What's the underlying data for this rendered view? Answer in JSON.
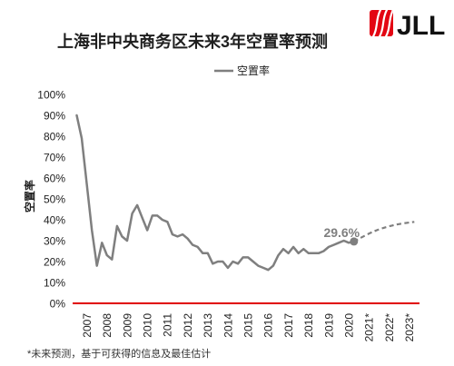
{
  "header": {
    "logo_text": "JLL",
    "logo_icon": "jll-logo-icon",
    "brand_color": "#e30613"
  },
  "chart_data": {
    "type": "line",
    "title": "上海非中央商务区未来3年空置率预测",
    "xlabel": "",
    "ylabel": "空置率",
    "x_tick_labels": [
      "2007",
      "2008",
      "2009",
      "2010",
      "2011",
      "2012",
      "2013",
      "2014",
      "2015",
      "2016",
      "2017",
      "2018",
      "2019",
      "2020",
      "2021*",
      "2022*",
      "2023*"
    ],
    "y_tick_labels": [
      "100%",
      "90%",
      "80%",
      "70%",
      "60%",
      "50%",
      "40%",
      "30%",
      "20%",
      "10%",
      "0%"
    ],
    "xlim": [
      2007,
      2024
    ],
    "ylim": [
      0,
      100
    ],
    "grid": false,
    "legend": {
      "position": "top-center"
    },
    "series": [
      {
        "name": "空置率",
        "color": "#7f7f7f",
        "line_style": "solid",
        "x": [
          2007,
          2007.25,
          2007.5,
          2007.75,
          2008,
          2008.25,
          2008.5,
          2008.75,
          2009,
          2009.25,
          2009.5,
          2009.75,
          2010,
          2010.25,
          2010.5,
          2010.75,
          2011,
          2011.25,
          2011.5,
          2011.75,
          2012,
          2012.25,
          2012.5,
          2012.75,
          2013,
          2013.25,
          2013.5,
          2013.75,
          2014,
          2014.25,
          2014.5,
          2014.75,
          2015,
          2015.25,
          2015.5,
          2015.75,
          2016,
          2016.25,
          2016.5,
          2016.75,
          2017,
          2017.25,
          2017.5,
          2017.75,
          2018,
          2018.25,
          2018.5,
          2018.75,
          2019,
          2019.25,
          2019.5,
          2019.75,
          2020,
          2020.25,
          2020.5,
          2020.75
        ],
        "values": [
          90,
          79,
          57,
          35,
          18,
          29,
          23,
          21,
          37,
          32,
          30,
          43,
          47,
          41,
          35,
          42,
          42,
          40,
          39,
          33,
          32,
          33,
          31,
          28,
          27,
          24,
          24,
          19,
          20,
          20,
          17,
          20,
          19,
          22,
          22,
          20,
          18,
          17,
          16,
          18,
          23,
          26,
          24,
          27,
          24,
          26,
          24,
          24,
          24,
          25,
          27,
          28,
          29,
          30,
          29,
          29.6
        ]
      },
      {
        "color": "#7f7f7f",
        "line_style": "dashed",
        "x": [
          2020.75,
          2021.75,
          2022.75,
          2023.75
        ],
        "values": [
          29.6,
          34.5,
          37.5,
          39
        ]
      }
    ],
    "annotations": [
      {
        "text": "29.6%",
        "x": 2020.75,
        "y": 29.6,
        "marker_color": "#7f7f7f"
      }
    ],
    "reference_line": {
      "y": 0,
      "color": "#e00000"
    }
  },
  "footer": {
    "note": "*未来预测，基于可获得的信息及最佳估计"
  }
}
